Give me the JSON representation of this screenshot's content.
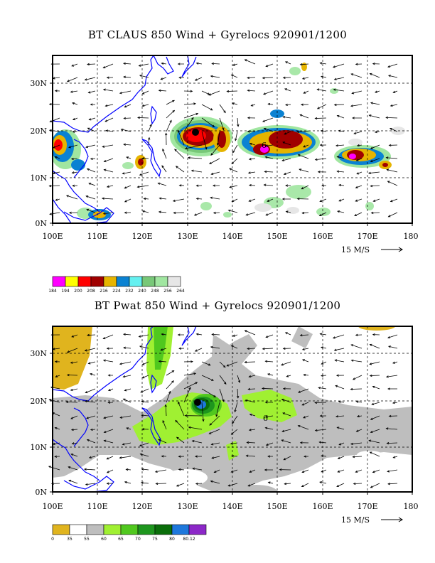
{
  "panels": [
    {
      "title": "BT CLAUS 850 Wind + Gyrelocs 920901/1200",
      "x_ticks": [
        "100E",
        "110E",
        "120E",
        "130E",
        "140E",
        "150E",
        "160E",
        "170E",
        "180"
      ],
      "y_ticks": [
        "0N",
        "10N",
        "20N",
        "30N"
      ],
      "vector_scale_label": "15 M/S",
      "storm_marker": "6",
      "colorbar": {
        "labels": [
          "184",
          "194",
          "200",
          "208",
          "216",
          "224",
          "232",
          "240",
          "248",
          "256",
          "264"
        ],
        "colors": [
          "#ff00ff",
          "#ffff00",
          "#ff0000",
          "#a00000",
          "#e6b400",
          "#0a82d2",
          "#64f0f0",
          "#78c878",
          "#a0e6a0",
          "#e6e6e6"
        ]
      }
    },
    {
      "title": "BT Pwat 850 Wind + Gyrelocs 920901/1200",
      "x_ticks": [
        "100E",
        "110E",
        "120E",
        "130E",
        "140E",
        "150E",
        "160E",
        "170E",
        "180"
      ],
      "y_ticks": [
        "0N",
        "10N",
        "20N",
        "30N"
      ],
      "vector_scale_label": "15 M/S",
      "storm_marker": "6",
      "colorbar": {
        "labels": [
          "0",
          "35",
          "55",
          "60",
          "65",
          "70",
          "75",
          "80",
          "80.12"
        ],
        "colors": [
          "#e0b41e",
          "#ffffff",
          "#bebebe",
          "#a0f032",
          "#50c81e",
          "#1e961e",
          "#0a6e0a",
          "#1e78dc",
          "#8c28c8"
        ]
      }
    }
  ],
  "colors": {
    "coastline": "#0000ff",
    "frame": "#000000",
    "grid": "#000000"
  }
}
